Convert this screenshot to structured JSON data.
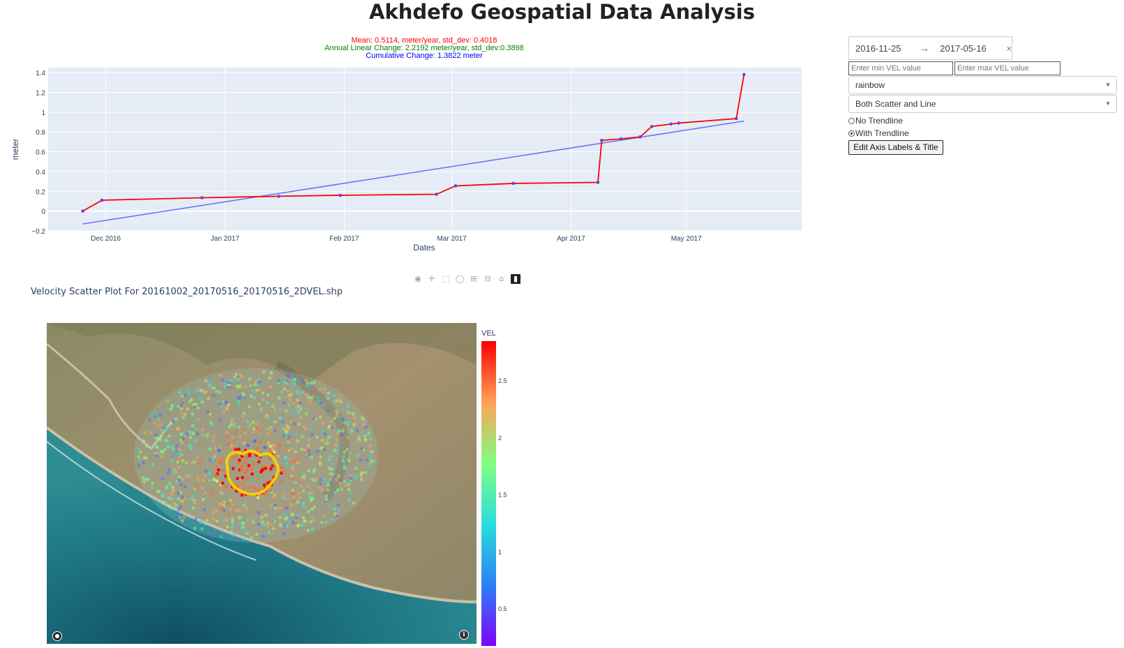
{
  "page": {
    "title": "Akhdefo Geospatial Data Analysis"
  },
  "chart_data": {
    "type": "line",
    "stats": {
      "mean": "Mean: 0.5114, meter/year, std_dev: 0.4018",
      "annual": "Annual Linear Change: 2.2192 meter/year, std_dev:0.3898",
      "cumulative": "Cumulative Change: 1.3822 meter"
    },
    "xlabel": "Dates",
    "ylabel": "meter",
    "x_range": [
      "2016-11-16",
      "2017-05-31"
    ],
    "ylim": [
      -0.2,
      1.45
    ],
    "y_ticks": [
      "1.4",
      "1.2",
      "1",
      "0.8",
      "0.6",
      "0.4",
      "0.2",
      "0",
      "−0.2"
    ],
    "y_tick_values": [
      1.4,
      1.2,
      1.0,
      0.8,
      0.6,
      0.4,
      0.2,
      0,
      -0.2
    ],
    "x_ticks": [
      {
        "label": "Dec 2016",
        "date": "2016-12-01"
      },
      {
        "label": "Jan 2017",
        "date": "2017-01-01"
      },
      {
        "label": "Feb 2017",
        "date": "2017-02-01"
      },
      {
        "label": "Mar 2017",
        "date": "2017-03-01"
      },
      {
        "label": "Apr 2017",
        "date": "2017-04-01"
      },
      {
        "label": "May 2017",
        "date": "2017-05-01"
      }
    ],
    "series": [
      {
        "mode": "lines+markers",
        "line_color": "#ff0000",
        "marker_color": "#6f42c1",
        "x": [
          "2016-11-25",
          "2016-11-30",
          "2016-12-26",
          "2017-01-15",
          "2017-01-31",
          "2017-02-25",
          "2017-03-02",
          "2017-03-17",
          "2017-04-08",
          "2017-04-09",
          "2017-04-14",
          "2017-04-19",
          "2017-04-22",
          "2017-04-27",
          "2017-04-29",
          "2017-05-14",
          "2017-05-16"
        ],
        "y": [
          0.0,
          0.11,
          0.135,
          0.15,
          0.16,
          0.17,
          0.255,
          0.28,
          0.29,
          0.715,
          0.73,
          0.75,
          0.855,
          0.88,
          0.89,
          0.935,
          1.38
        ]
      },
      {
        "mode": "lines",
        "line_color": "#636efa",
        "x": [
          "2016-11-25",
          "2017-05-16"
        ],
        "y": [
          -0.13,
          0.91
        ]
      }
    ],
    "grid": true,
    "plot_bg": "#e5ecf6"
  },
  "toolbar": {
    "icons": [
      "camera-icon",
      "pan-icon",
      "box-select-icon",
      "lasso-icon",
      "zoom-in-icon",
      "zoom-out-icon",
      "home-icon",
      "plotly-logo-icon"
    ]
  },
  "scatter": {
    "title": "Velocity Scatter Plot For 20161002_20170516_20170516_2DVEL.shp",
    "colorbar": {
      "title": "VEL",
      "colorscale": "rainbow",
      "ticks": [
        "2.5",
        "2",
        "1.5",
        "1",
        "0.5"
      ],
      "tick_values": [
        2.5,
        2.0,
        1.5,
        1.0,
        0.5
      ],
      "range": [
        0.17,
        2.85
      ]
    },
    "highlight_color": "#f5d000"
  },
  "controls": {
    "date_start": "2016-11-25",
    "date_arrow": "→",
    "date_end": "2017-05-16",
    "clear": "×",
    "vel_min_placeholder": "Enter min VEL value",
    "vel_max_placeholder": "Enter max VEL value",
    "colormap": "rainbow",
    "plot_mode": "Both Scatter and Line",
    "radio_no": "No Trendline",
    "radio_with": "With Trendline",
    "trendline_selected": "With Trendline",
    "edit_button": "Edit Axis Labels & Title"
  }
}
